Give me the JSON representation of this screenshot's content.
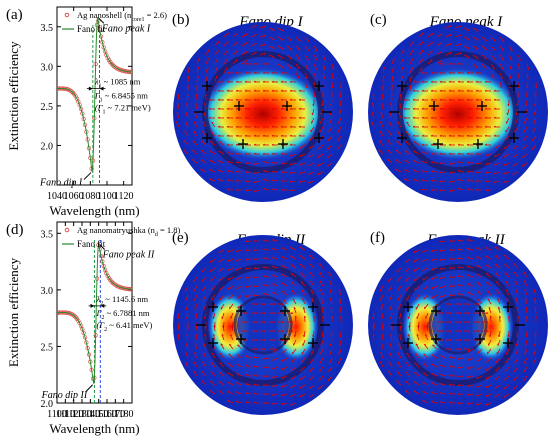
{
  "colors": {
    "data": "#e05050",
    "fit": "#2a8a2a",
    "blue_guide": "#3050e0",
    "green_guide": "#2aa050",
    "arrow": "#e00000",
    "ring": "#1a1a66"
  },
  "chart_data": [
    {
      "type": "line",
      "panel_label": "(a)",
      "xlabel": "Wavelength (nm)",
      "ylabel": "Extinction efficiency",
      "xlim": [
        1040,
        1130
      ],
      "ylim": [
        1.5,
        3.75
      ],
      "xticks": [
        1040,
        1060,
        1080,
        1100,
        1120
      ],
      "yticks": [
        2.0,
        2.5,
        3.0,
        3.5
      ],
      "grid": false,
      "legend_position": "top-left",
      "legend": [
        {
          "label": "Ag nanoshell (n",
          "sub": "core1",
          "suffix": " = 2.6)",
          "kind": "markers"
        },
        {
          "label": "Fano fit",
          "kind": "line"
        }
      ],
      "fano": {
        "dip": [
          1082,
          1.67
        ],
        "peak": [
          1089,
          3.62
        ],
        "baseline": 2.92,
        "left_level": 2.72
      },
      "annotations": {
        "peak": "Fano peak I",
        "dip": "Fano dip I",
        "lambda": "λ",
        "lambda_sub": "1",
        "lambda_val": " ~ 1085 nm",
        "gamma": "Γ",
        "gamma_sub": "1",
        "gamma_val": " ~ 6.8455 nm",
        "gamma2": "(Γ",
        "gamma2_sub": "1",
        "gamma2_val": " ~ 7.21 meV)"
      }
    },
    {
      "type": "line",
      "panel_label": "(d)",
      "xlabel": "Wavelength (nm)",
      "ylabel": "Extinction efficiency",
      "xlim": [
        1100,
        1190
      ],
      "ylim": [
        2.0,
        3.6
      ],
      "xticks": [
        1100,
        1110,
        1120,
        1130,
        1140,
        1150,
        1160,
        1170,
        1180
      ],
      "yticks": [
        2.0,
        2.5,
        3.0,
        3.5
      ],
      "grid": false,
      "legend_position": "top-left",
      "legend": [
        {
          "label": "Ag nanomatryushka (n",
          "sub": "d",
          "suffix": " = 1.8)",
          "kind": "markers"
        },
        {
          "label": "Fano fit",
          "kind": "line"
        }
      ],
      "fano": {
        "dip": [
          1144,
          2.17
        ],
        "peak": [
          1150,
          3.41
        ],
        "baseline": 3.0,
        "left_level": 2.8
      },
      "annotations": {
        "peak": "Fano peak II",
        "dip": "Fano dip II",
        "lambda": "λ",
        "lambda_sub": "2",
        "lambda_val": " ~ 1145.6 nm",
        "gamma": "Γ",
        "gamma_sub": "2",
        "gamma_val": " ~ 6.7881 nm",
        "gamma2": "(Γ",
        "gamma2_sub": "2",
        "gamma2_val": " ~ 6.41 meV)"
      }
    }
  ],
  "field_maps": [
    {
      "panel_label": "(b)",
      "title": "Fano dip I",
      "mode": "dipole"
    },
    {
      "panel_label": "(c)",
      "title": "Fano peak I",
      "mode": "dipole"
    },
    {
      "panel_label": "(e)",
      "title": "Fano dip II",
      "mode": "split"
    },
    {
      "panel_label": "(f)",
      "title": "Fano peak II",
      "mode": "split"
    }
  ]
}
